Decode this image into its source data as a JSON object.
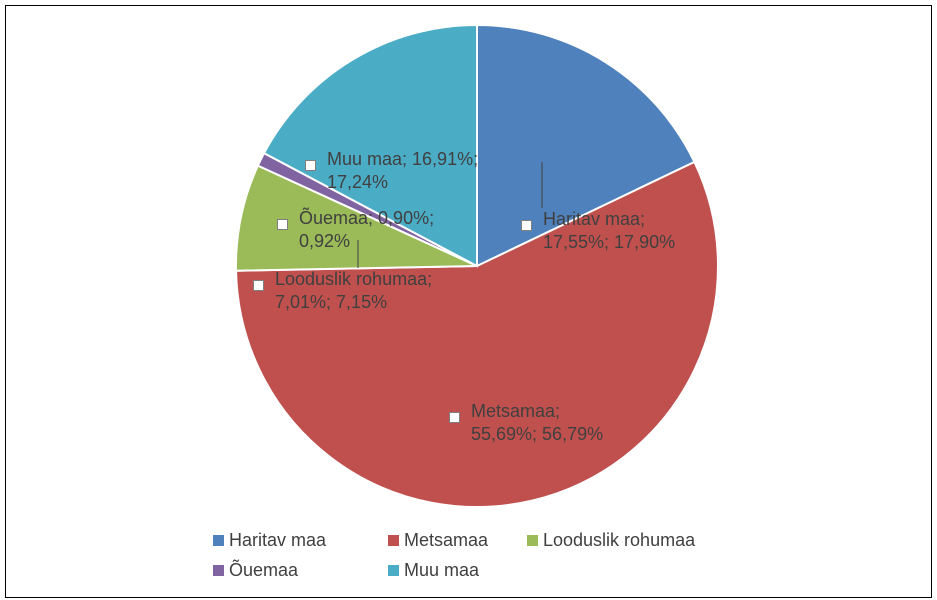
{
  "chart_data": {
    "type": "pie",
    "categories": [
      "Haritav maa",
      "Metsamaa",
      "Looduslik rohumaa",
      "Õuemaa",
      "Muu maa"
    ],
    "values": [
      17.55,
      55.69,
      7.01,
      0.9,
      16.91
    ],
    "value_labels": [
      "Haritav maa; 17,55%; 17,90%",
      "Metsamaa; 55,69%; 56,79%",
      "Looduslik rohumaa; 7,01%; 7,15%",
      "Õuemaa; 0,90%; 0,92%",
      "Muu maa; 16,91%; 17,24%"
    ],
    "colors": [
      "#4f81bd",
      "#c0504d",
      "#9bbb59",
      "#8064a2",
      "#4bacc6"
    ],
    "legend": "bottom"
  }
}
